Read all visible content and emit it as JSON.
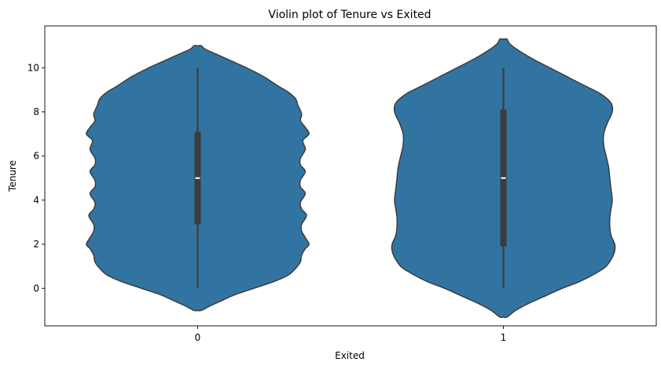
{
  "chart_data": {
    "type": "violin",
    "title": "Violin plot of Tenure vs Exited",
    "xlabel": "Exited",
    "ylabel": "Tenure",
    "ylim": [
      -1.7,
      11.9
    ],
    "yticks": [
      0,
      2,
      4,
      6,
      8,
      10
    ],
    "ytick_labels": [
      "0",
      "2",
      "4",
      "6",
      "8",
      "10"
    ],
    "categories": [
      "0",
      "1"
    ],
    "fill_color": "#3274a1",
    "edge_color": "#3c3c3c",
    "box_color": "#3c3c3c",
    "median_color": "#ffffff",
    "violins": [
      {
        "category": "0",
        "min": 0,
        "q1": 2.9,
        "median": 5,
        "q3": 7.1,
        "max": 10,
        "profile": [
          [
            -1.0,
            0.03
          ],
          [
            -0.8,
            0.1
          ],
          [
            -0.6,
            0.18
          ],
          [
            -0.3,
            0.3
          ],
          [
            0.0,
            0.46
          ],
          [
            0.3,
            0.62
          ],
          [
            0.6,
            0.74
          ],
          [
            0.9,
            0.8
          ],
          [
            1.2,
            0.84
          ],
          [
            1.5,
            0.85
          ],
          [
            1.8,
            0.88
          ],
          [
            2.0,
            0.91
          ],
          [
            2.3,
            0.88
          ],
          [
            2.6,
            0.85
          ],
          [
            2.9,
            0.85
          ],
          [
            3.3,
            0.89
          ],
          [
            3.6,
            0.85
          ],
          [
            3.9,
            0.84
          ],
          [
            4.3,
            0.88
          ],
          [
            4.6,
            0.84
          ],
          [
            4.9,
            0.84
          ],
          [
            5.3,
            0.88
          ],
          [
            5.6,
            0.84
          ],
          [
            5.9,
            0.84
          ],
          [
            6.3,
            0.88
          ],
          [
            6.7,
            0.86
          ],
          [
            7.0,
            0.91
          ],
          [
            7.3,
            0.88
          ],
          [
            7.6,
            0.84
          ],
          [
            7.9,
            0.85
          ],
          [
            8.3,
            0.82
          ],
          [
            8.6,
            0.8
          ],
          [
            8.9,
            0.74
          ],
          [
            9.2,
            0.65
          ],
          [
            9.6,
            0.54
          ],
          [
            10.0,
            0.4
          ],
          [
            10.3,
            0.28
          ],
          [
            10.6,
            0.16
          ],
          [
            10.85,
            0.06
          ],
          [
            11.0,
            0.03
          ]
        ]
      },
      {
        "category": "1",
        "min": 0,
        "q1": 1.9,
        "median": 5,
        "q3": 8.1,
        "max": 10,
        "profile": [
          [
            -1.3,
            0.03
          ],
          [
            -1.0,
            0.1
          ],
          [
            -0.7,
            0.2
          ],
          [
            -0.4,
            0.32
          ],
          [
            0.0,
            0.48
          ],
          [
            0.3,
            0.62
          ],
          [
            0.7,
            0.76
          ],
          [
            1.0,
            0.84
          ],
          [
            1.4,
            0.89
          ],
          [
            1.7,
            0.91
          ],
          [
            2.0,
            0.91
          ],
          [
            2.4,
            0.88
          ],
          [
            2.8,
            0.87
          ],
          [
            3.2,
            0.87
          ],
          [
            3.6,
            0.88
          ],
          [
            4.0,
            0.89
          ],
          [
            4.5,
            0.88
          ],
          [
            5.0,
            0.87
          ],
          [
            5.5,
            0.86
          ],
          [
            6.0,
            0.84
          ],
          [
            6.5,
            0.82
          ],
          [
            7.0,
            0.82
          ],
          [
            7.5,
            0.85
          ],
          [
            8.0,
            0.89
          ],
          [
            8.4,
            0.88
          ],
          [
            8.8,
            0.8
          ],
          [
            9.2,
            0.66
          ],
          [
            9.6,
            0.52
          ],
          [
            10.0,
            0.38
          ],
          [
            10.4,
            0.24
          ],
          [
            10.8,
            0.12
          ],
          [
            11.1,
            0.05
          ],
          [
            11.3,
            0.03
          ]
        ]
      }
    ]
  }
}
